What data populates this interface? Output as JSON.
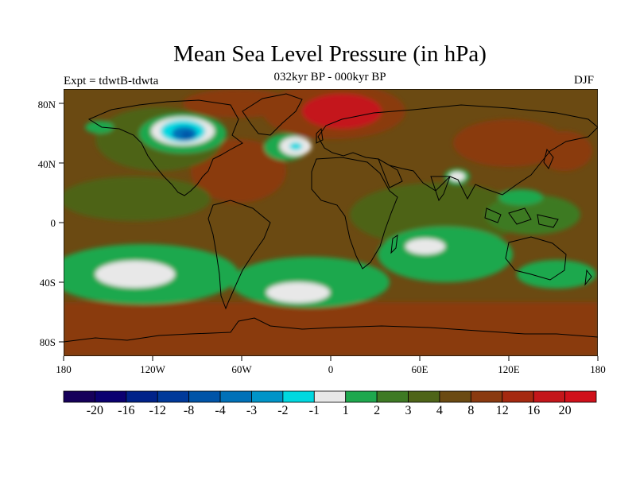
{
  "title": "Mean Sea Level Pressure (in hPa)",
  "subtitle": "032kyr BP - 000kyr BP",
  "left_string": "Expt = tdwtB-tdwta",
  "right_string": "DJF",
  "lat_labels": [
    "80N",
    "40N",
    "0",
    "40S",
    "80S"
  ],
  "lon_labels": [
    "180",
    "120W",
    "60W",
    "0",
    "60E",
    "120E",
    "180"
  ],
  "colorbar": {
    "labels": [
      "-20",
      "-16",
      "-12",
      "-8",
      "-4",
      "-3",
      "-2",
      "-1",
      "1",
      "2",
      "3",
      "4",
      "8",
      "12",
      "16",
      "20"
    ],
    "colors": [
      "#16005a",
      "#0b0070",
      "#002289",
      "#00399a",
      "#0054a8",
      "#0071b8",
      "#0094c8",
      "#00d8e0",
      "#e8e8e8",
      "#1ea84e",
      "#3e7a24",
      "#4e6418",
      "#6b4a12",
      "#8a3a10",
      "#a52910",
      "#c4161a",
      "#d0101a"
    ]
  },
  "map_colors": {
    "base": "#6b4a12",
    "land": "#5f4a14",
    "warm": "#8a3a10",
    "hot": "#c4161a",
    "green": "#1ea84e",
    "olive": "#4e6418",
    "dark_green": "#3e7a24",
    "white": "#e8e8e8",
    "cyan": "#00d8e0",
    "blue": "#0071b8",
    "deep_blue": "#0054a8"
  }
}
